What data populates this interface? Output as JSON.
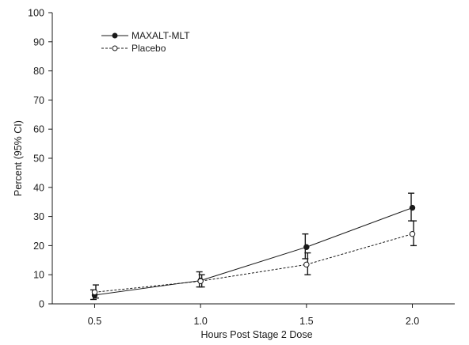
{
  "chart_data": {
    "type": "line",
    "xlabel": "Hours Post Stage 2 Dose",
    "ylabel": "Percent (95% CI)",
    "x": [
      0.5,
      1.0,
      1.5,
      2.0
    ],
    "x_tick_labels": [
      "0.5",
      "1.0",
      "1.5",
      "2.0"
    ],
    "xlim": [
      0.3,
      2.2
    ],
    "ylim": [
      0,
      100
    ],
    "y_ticks": [
      0,
      10,
      20,
      30,
      40,
      50,
      60,
      70,
      80,
      90,
      100
    ],
    "grid": false,
    "legend_position": "top-left",
    "series": [
      {
        "name": "MAXALT-MLT",
        "values": [
          3,
          8,
          19.5,
          33
        ],
        "ci_low": [
          1.5,
          5.8,
          15.5,
          28.5
        ],
        "ci_high": [
          4.8,
          11,
          24,
          38
        ],
        "line_style": "solid",
        "marker": "filled-circle",
        "color": "#1a1a1a"
      },
      {
        "name": "Placebo",
        "values": [
          4,
          7.8,
          13.5,
          24
        ],
        "ci_low": [
          2,
          5.8,
          10,
          20
        ],
        "ci_high": [
          6.5,
          10,
          17.5,
          28.5
        ],
        "line_style": "dashed",
        "marker": "open-circle",
        "color": "#1a1a1a"
      }
    ]
  }
}
